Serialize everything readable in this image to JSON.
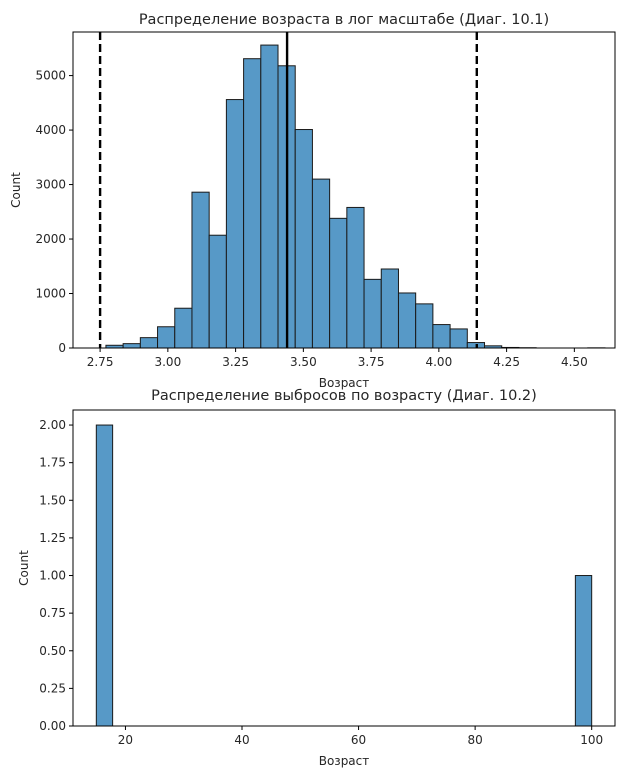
{
  "chart_data": [
    {
      "type": "bar",
      "title": "Распределение возраста в лог масштабе (Диаг. 10.1)",
      "xlabel": "Возраст",
      "ylabel": "Count",
      "xlim": [
        2.65,
        4.65
      ],
      "ylim": [
        0,
        5800
      ],
      "xticks": [
        "2.75",
        "3.00",
        "3.25",
        "3.50",
        "3.75",
        "4.00",
        "4.25",
        "4.50"
      ],
      "xtick_values": [
        2.75,
        3.0,
        3.25,
        3.5,
        3.75,
        4.0,
        4.25,
        4.5
      ],
      "yticks": [
        "0",
        "1000",
        "2000",
        "3000",
        "4000",
        "5000"
      ],
      "ytick_values": [
        0,
        1000,
        2000,
        3000,
        4000,
        5000
      ],
      "bar_color": "#5799c7",
      "bar_edge_color": "#1a1a1a",
      "bin_start": 2.708,
      "bin_width": 0.0635,
      "values": [
        0,
        50,
        80,
        190,
        390,
        730,
        2860,
        2070,
        4560,
        5310,
        5560,
        5180,
        4010,
        3100,
        2380,
        2580,
        1260,
        1450,
        1010,
        810,
        430,
        350,
        100,
        40,
        10,
        5,
        0,
        0,
        0,
        3
      ],
      "reference_lines": [
        {
          "x": 3.44,
          "style": "solid",
          "color": "#000000"
        },
        {
          "x": 2.75,
          "style": "dashed",
          "color": "#000000"
        },
        {
          "x": 4.14,
          "style": "dashed",
          "color": "#000000"
        }
      ]
    },
    {
      "type": "bar",
      "title": "Распределение выбросов по возрасту (Диаг. 10.2)",
      "xlabel": "Возраст",
      "ylabel": "Count",
      "xlim": [
        11,
        104
      ],
      "ylim": [
        0,
        2.1
      ],
      "xticks": [
        "20",
        "40",
        "60",
        "80",
        "100"
      ],
      "xtick_values": [
        20,
        40,
        60,
        80,
        100
      ],
      "yticks": [
        "0.00",
        "0.25",
        "0.50",
        "0.75",
        "1.00",
        "1.25",
        "1.50",
        "1.75",
        "2.00"
      ],
      "ytick_values": [
        0,
        0.25,
        0.5,
        0.75,
        1.0,
        1.25,
        1.5,
        1.75,
        2.0
      ],
      "bar_color": "#5799c7",
      "bar_edge_color": "#1a1a1a",
      "bars": [
        {
          "x0": 15,
          "x1": 17.8,
          "value": 2
        },
        {
          "x0": 97.2,
          "x1": 100,
          "value": 1
        }
      ]
    }
  ]
}
